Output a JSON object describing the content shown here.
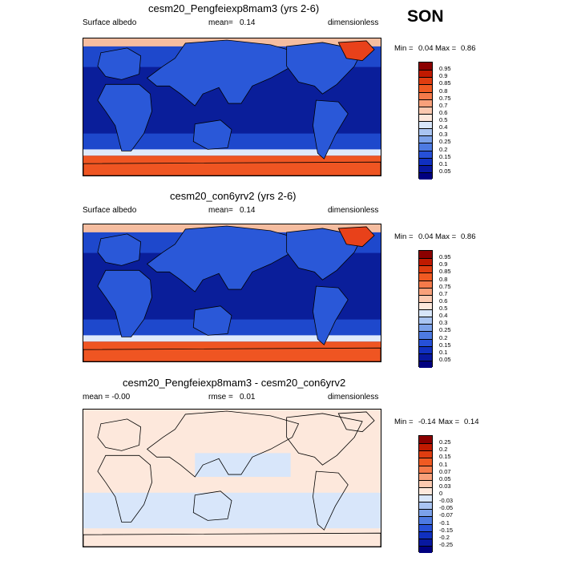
{
  "season": "SON",
  "panels": [
    {
      "title": "cesm20_Pengfeiexp8mam3 (yrs 2-6)",
      "left_label": "Surface albedo",
      "mean_label": "mean=",
      "mean_value": "0.14",
      "units": "dimensionless",
      "min_label": "Min =",
      "min_value": "0.04",
      "max_label": "Max =",
      "max_value": "0.86",
      "kind": "albedo"
    },
    {
      "title": "cesm20_con6yrv2 (yrs 2-6)",
      "left_label": "Surface albedo",
      "mean_label": "mean=",
      "mean_value": "0.14",
      "units": "dimensionless",
      "min_label": "Min =",
      "min_value": "0.04",
      "max_label": "Max =",
      "max_value": "0.86",
      "kind": "albedo"
    },
    {
      "title": "cesm20_Pengfeiexp8mam3 - cesm20_con6yrv2",
      "left_label": "mean =  -0.00",
      "mean_label": "rmse =",
      "mean_value": "0.01",
      "units": "dimensionless",
      "min_label": "Min =",
      "min_value": "-0.14",
      "max_label": "Max =",
      "max_value": "0.14",
      "kind": "diff"
    }
  ],
  "colorbars": {
    "albedo": {
      "labels": [
        "0.95",
        "0.9",
        "0.85",
        "0.8",
        "0.75",
        "0.7",
        "0.6",
        "0.5",
        "0.4",
        "0.3",
        "0.25",
        "0.2",
        "0.15",
        "0.1",
        "0.05"
      ],
      "colors": [
        "#8b0000",
        "#c01a00",
        "#e03d10",
        "#f05a22",
        "#f57a4a",
        "#f8a07a",
        "#fbc9b0",
        "#fde8dc",
        "#d8e6fa",
        "#a9c4f2",
        "#7ba1ea",
        "#4d7ae2",
        "#2650d8",
        "#1030c0",
        "#0818a0",
        "#000080"
      ]
    },
    "diff": {
      "labels": [
        "0.25",
        "0.2",
        "0.15",
        "0.1",
        "0.07",
        "0.05",
        "0.03",
        "0",
        "-0.03",
        "-0.05",
        "-0.07",
        "-0.1",
        "-0.15",
        "-0.2",
        "-0.25"
      ],
      "colors": [
        "#8b0000",
        "#c01a00",
        "#e03d10",
        "#f05a22",
        "#f57a4a",
        "#f8a07a",
        "#fbc9b0",
        "#fde8dc",
        "#d8e6fa",
        "#a9c4f2",
        "#7ba1ea",
        "#4d7ae2",
        "#2650d8",
        "#1030c0",
        "#0818a0",
        "#000080"
      ]
    }
  },
  "chart_data": [
    {
      "type": "heatmap",
      "title": "cesm20_Pengfeiexp8mam3 (yrs 2-6)",
      "variable": "Surface albedo",
      "units": "dimensionless",
      "mean": 0.14,
      "min": 0.04,
      "max": 0.86,
      "levels": [
        0.05,
        0.1,
        0.15,
        0.2,
        0.25,
        0.3,
        0.4,
        0.5,
        0.6,
        0.7,
        0.75,
        0.8,
        0.85,
        0.9,
        0.95
      ]
    },
    {
      "type": "heatmap",
      "title": "cesm20_con6yrv2 (yrs 2-6)",
      "variable": "Surface albedo",
      "units": "dimensionless",
      "mean": 0.14,
      "min": 0.04,
      "max": 0.86,
      "levels": [
        0.05,
        0.1,
        0.15,
        0.2,
        0.25,
        0.3,
        0.4,
        0.5,
        0.6,
        0.7,
        0.75,
        0.8,
        0.85,
        0.9,
        0.95
      ]
    },
    {
      "type": "heatmap",
      "title": "cesm20_Pengfeiexp8mam3 - cesm20_con6yrv2",
      "units": "dimensionless",
      "mean": -0.0,
      "rmse": 0.01,
      "min": -0.14,
      "max": 0.14,
      "levels": [
        -0.25,
        -0.2,
        -0.15,
        -0.1,
        -0.07,
        -0.05,
        -0.03,
        0,
        0.03,
        0.05,
        0.07,
        0.1,
        0.15,
        0.2,
        0.25
      ]
    }
  ]
}
